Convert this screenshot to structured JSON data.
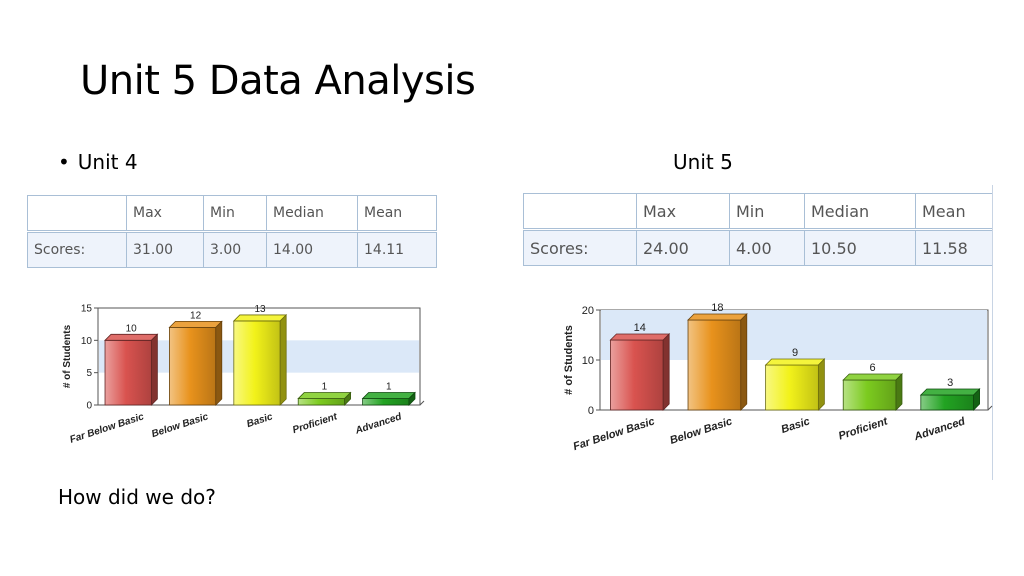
{
  "slide": {
    "title": "Unit 5 Data Analysis",
    "bullet": "Unit 4",
    "right_heading": "Unit 5",
    "question": "How did we do?"
  },
  "tables": [
    {
      "headers": [
        "",
        "Max",
        "Min",
        "Median",
        "Mean"
      ],
      "row": [
        "Scores:",
        "31.00",
        "3.00",
        "14.00",
        "14.11"
      ]
    },
    {
      "headers": [
        "",
        "Max",
        "Min",
        "Median",
        "Mean"
      ],
      "row": [
        "Scores:",
        "24.00",
        "4.00",
        "10.50",
        "11.58"
      ]
    }
  ],
  "chart_data": [
    {
      "type": "bar",
      "categories": [
        "Far Below Basic",
        "Below Basic",
        "Basic",
        "Proficient",
        "Advanced"
      ],
      "values": [
        10,
        12,
        13,
        1,
        1
      ],
      "ylabel": "# of Students",
      "ylim": [
        0,
        15
      ],
      "yticks": [
        "0",
        "5",
        "10",
        "15"
      ],
      "colors": [
        "#d9534f",
        "#e8921c",
        "#f2f21a",
        "#7ccb1f",
        "#22a322"
      ]
    },
    {
      "type": "bar",
      "categories": [
        "Far Below Basic",
        "Below Basic",
        "Basic",
        "Proficient",
        "Advanced"
      ],
      "values": [
        14,
        18,
        9,
        6,
        3
      ],
      "ylabel": "# of Students",
      "ylim": [
        0,
        20
      ],
      "yticks": [
        "0",
        "10",
        "20"
      ],
      "colors": [
        "#d9534f",
        "#e8921c",
        "#f2f21a",
        "#7ccb1f",
        "#22a322"
      ]
    }
  ]
}
